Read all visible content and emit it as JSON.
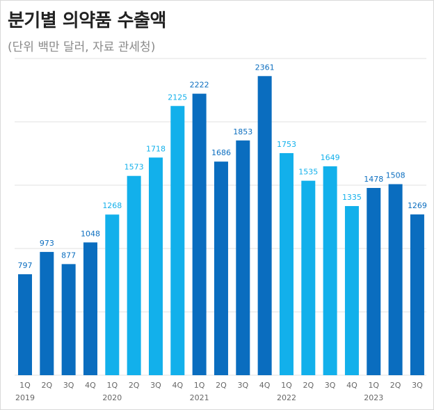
{
  "header": {
    "title": "분기별 의약품 수출액",
    "subtitle": "(단위 백만 달러, 자료 관세청)"
  },
  "colors": {
    "dark_blue": "#0a6dbf",
    "light_blue": "#12b0eb",
    "grid": "#e2e2e2",
    "axis_label": "#666666"
  },
  "chart_data": {
    "type": "bar",
    "title": "분기별 의약품 수출액",
    "subtitle": "(단위 백만 달러, 자료 관세청)",
    "categories": [
      "1Q",
      "2Q",
      "3Q",
      "4Q",
      "1Q",
      "2Q",
      "3Q",
      "4Q",
      "1Q",
      "2Q",
      "3Q",
      "4Q",
      "1Q",
      "2Q",
      "3Q",
      "4Q",
      "1Q",
      "2Q",
      "3Q"
    ],
    "years": [
      {
        "label": "2019",
        "index": 0
      },
      {
        "label": "2020",
        "index": 4
      },
      {
        "label": "2021",
        "index": 8
      },
      {
        "label": "2022",
        "index": 12
      },
      {
        "label": "2023",
        "index": 16
      }
    ],
    "values": [
      797,
      973,
      877,
      1048,
      1268,
      1573,
      1718,
      2125,
      2222,
      1686,
      1853,
      2361,
      1753,
      1535,
      1649,
      1335,
      1478,
      1508,
      1269
    ],
    "color_groups": [
      "dark",
      "dark",
      "dark",
      "dark",
      "light",
      "light",
      "light",
      "light",
      "dark",
      "dark",
      "dark",
      "dark",
      "light",
      "light",
      "light",
      "light",
      "dark",
      "dark",
      "dark"
    ],
    "ylim": [
      0,
      2500
    ],
    "y_gridlines": [
      0,
      500,
      1000,
      1500,
      2000,
      2500
    ],
    "grid": true,
    "legend": false
  }
}
